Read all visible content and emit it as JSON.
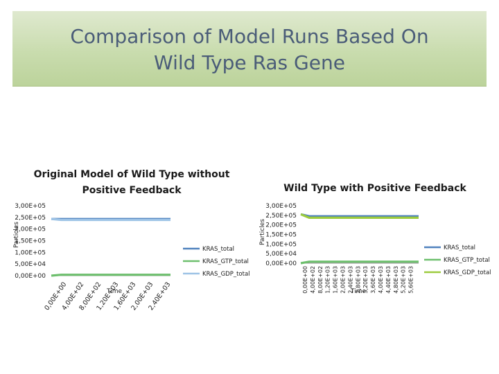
{
  "slide": {
    "title_line1": "Comparison of Model Runs Based On",
    "title_line2": "Wild Type Ras Gene"
  },
  "chart_data": [
    {
      "type": "line",
      "title_line1": "Original Model of Wild Type without",
      "title_line2": "Positive Feedback",
      "xlabel": "Time",
      "ylabel": "Particles",
      "x_ticks": [
        "0,00E+00",
        "4,00E+02",
        "8,00E+02",
        "1,20E+03",
        "1,60E+03",
        "2,00E+03",
        "2,40E+03"
      ],
      "y_ticks": [
        "0,00E+00",
        "5,00E+04",
        "1,00E+05",
        "1,50E+05",
        "2,00E+05",
        "2,50E+05",
        "3,00E+05"
      ],
      "ylim": [
        0,
        300000
      ],
      "xlim": [
        0,
        2400
      ],
      "legend_position": "right",
      "series": [
        {
          "name": "KRAS_total",
          "color": "#4f81bd",
          "x": [
            0,
            200,
            2400
          ],
          "values": [
            243000,
            243000,
            243000
          ]
        },
        {
          "name": "KRAS_GTP_total",
          "color": "#6dbf6d",
          "x": [
            0,
            200,
            2400
          ],
          "values": [
            0,
            4000,
            4000
          ]
        },
        {
          "name": "KRAS_GDP_total",
          "color": "#9dc3e6",
          "x": [
            0,
            200,
            2400
          ],
          "values": [
            243000,
            239000,
            239000
          ]
        }
      ]
    },
    {
      "type": "line",
      "title": "Wild Type with Positive Feedback",
      "xlabel": "Time",
      "ylabel": "Particles",
      "x_ticks": [
        "0,00E+00",
        "4,00E+02",
        "8,00E+02",
        "1,20E+03",
        "1,60E+03",
        "2,00E+03",
        "2,40E+03",
        "2,80E+03",
        "3,20E+03",
        "3,60E+03",
        "4,00E+03",
        "4,40E+03",
        "4,80E+03",
        "5,20E+03",
        "5,60E+03"
      ],
      "y_ticks": [
        "0,00E+00",
        "5,00E+04",
        "1,00E+05",
        "1,50E+05",
        "2,00E+05",
        "2,50E+05",
        "3,00E+05"
      ],
      "ylim": [
        0,
        300000
      ],
      "xlim": [
        0,
        5600
      ],
      "legend_position": "right",
      "series": [
        {
          "name": "KRAS_total",
          "color": "#4f81bd",
          "x": [
            0,
            400,
            5600
          ],
          "values": [
            255000,
            245000,
            245000
          ]
        },
        {
          "name": "KRAS_GTP_total",
          "color": "#6dbf6d",
          "x": [
            0,
            400,
            5600
          ],
          "values": [
            0,
            8000,
            8000
          ]
        },
        {
          "name": "KRAS_GDP_total",
          "color": "#9ccb3d",
          "x": [
            0,
            400,
            5600
          ],
          "values": [
            255000,
            237000,
            237000
          ]
        }
      ]
    }
  ]
}
